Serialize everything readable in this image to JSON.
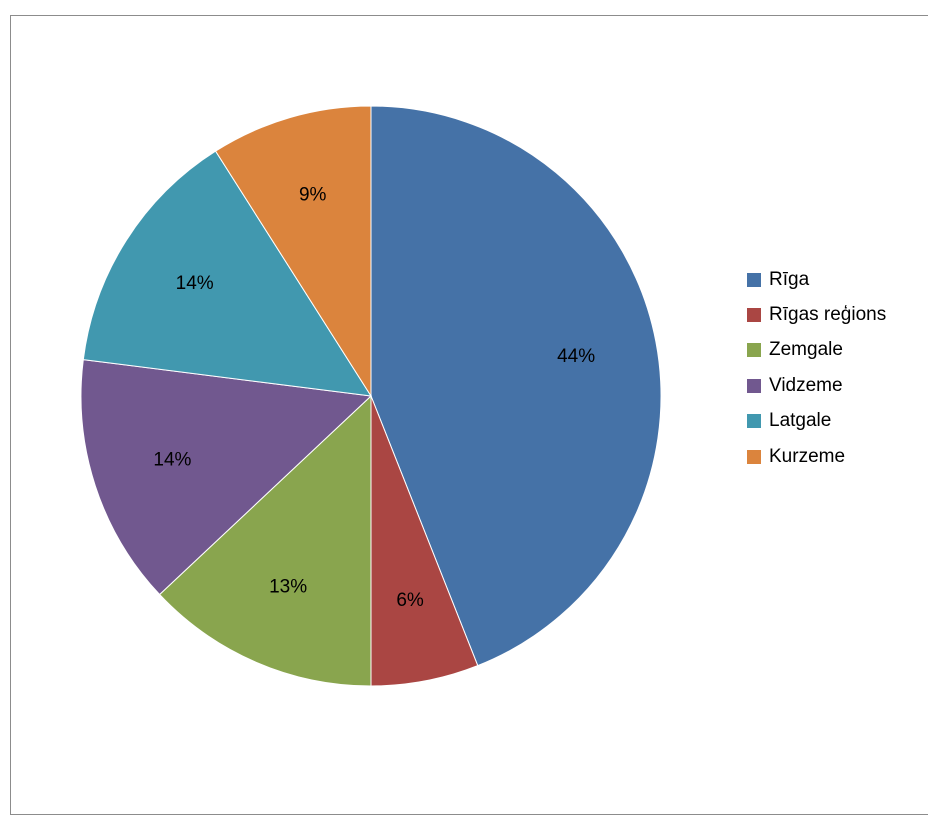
{
  "chart_data": {
    "type": "pie",
    "title": "",
    "categories": [
      "Rīga",
      "Rīgas reģions",
      "Zemgale",
      "Vidzeme",
      "Latgale",
      "Kurzeme"
    ],
    "values": [
      44,
      6,
      13,
      14,
      14,
      9
    ],
    "slice_labels": [
      "44%",
      "6%",
      "13%",
      "14%",
      "14%",
      "9%"
    ],
    "colors": [
      "#4572a7",
      "#aa4643",
      "#89a54e",
      "#71588f",
      "#4198af",
      "#db843d"
    ],
    "legend_position": "right"
  }
}
